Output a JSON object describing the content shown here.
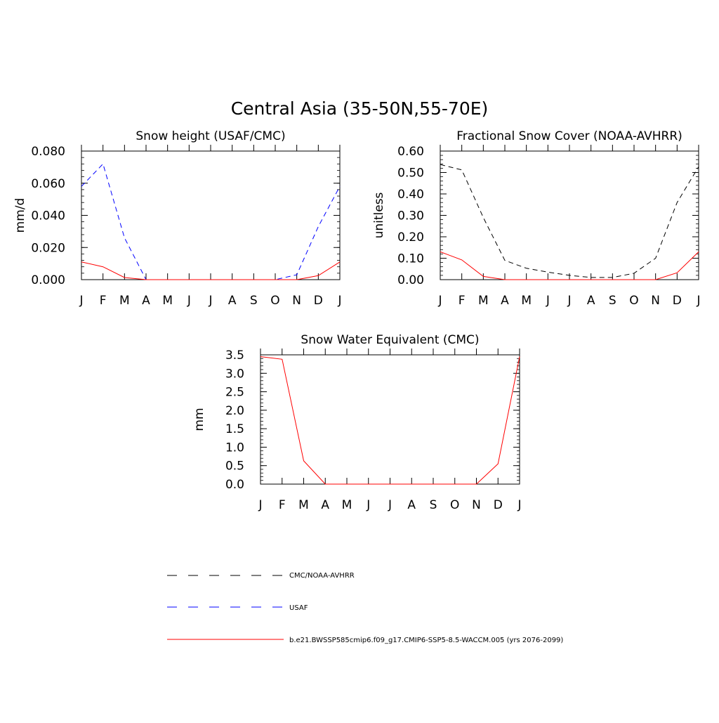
{
  "figure_title": "Central Asia (35-50N,55-70E)",
  "legend": [
    {
      "label": "CMC/NOAA-AVHRR",
      "color": "#000000",
      "dash": "dash"
    },
    {
      "label": "USAF",
      "color": "#0000ff",
      "dash": "dash"
    },
    {
      "label": "b.e21.BWSSP585cmip6.f09_g17.CMIP6-SSP5-8.5-WACCM.005 (yrs 2076-2099)",
      "color": "#ff0000",
      "dash": "solid"
    }
  ],
  "chart_data": [
    {
      "type": "line",
      "title": "Snow height (USAF/CMC)",
      "xlabel": "",
      "ylabel": "mm/d",
      "categories": [
        "J",
        "F",
        "M",
        "A",
        "M",
        "J",
        "J",
        "A",
        "S",
        "O",
        "N",
        "D",
        "J"
      ],
      "ylim": [
        0,
        0.08
      ],
      "yticks": [
        "0.000",
        "0.020",
        "0.040",
        "0.060",
        "0.080"
      ],
      "ytick_values": [
        0,
        0.02,
        0.04,
        0.06,
        0.08
      ],
      "series": [
        {
          "name": "USAF",
          "color": "#0000ff",
          "dash": "dash",
          "values": [
            0.058,
            0.072,
            0.026,
            0.0,
            0.0,
            0.0,
            0.0,
            0.0,
            0.0,
            0.0,
            0.003,
            0.033,
            0.058
          ]
        },
        {
          "name": "b.e21.BWSSP585cmip6.f09_g17.CMIP6-SSP5-8.5-WACCM.005 (yrs 2076-2099)",
          "color": "#ff0000",
          "dash": "solid",
          "values": [
            0.011,
            0.008,
            0.0013,
            0.0,
            0.0,
            0.0,
            0.0,
            0.0,
            0.0,
            0.0,
            0.0,
            0.0025,
            0.011
          ]
        }
      ]
    },
    {
      "type": "line",
      "title": "Fractional Snow Cover (NOAA-AVHRR)",
      "xlabel": "",
      "ylabel": "unitless",
      "categories": [
        "J",
        "F",
        "M",
        "A",
        "M",
        "J",
        "J",
        "A",
        "S",
        "O",
        "N",
        "D",
        "J"
      ],
      "ylim": [
        0,
        0.6
      ],
      "yticks": [
        "0.00",
        "0.10",
        "0.20",
        "0.30",
        "0.40",
        "0.50",
        "0.60"
      ],
      "ytick_values": [
        0,
        0.1,
        0.2,
        0.3,
        0.4,
        0.5,
        0.6
      ],
      "series": [
        {
          "name": "CMC/NOAA-AVHRR",
          "color": "#000000",
          "dash": "dash",
          "values": [
            0.537,
            0.512,
            0.29,
            0.09,
            0.053,
            0.035,
            0.02,
            0.01,
            0.01,
            0.03,
            0.1,
            0.36,
            0.527
          ]
        },
        {
          "name": "b.e21.BWSSP585cmip6.f09_g17.CMIP6-SSP5-8.5-WACCM.005 (yrs 2076-2099)",
          "color": "#ff0000",
          "dash": "solid",
          "values": [
            0.13,
            0.092,
            0.015,
            0.0,
            0.0,
            0.0,
            0.0,
            0.0,
            0.0,
            0.0,
            0.0,
            0.032,
            0.13
          ]
        }
      ]
    },
    {
      "type": "line",
      "title": "Snow Water Equivalent (CMC)",
      "xlabel": "",
      "ylabel": "mm",
      "categories": [
        "J",
        "F",
        "M",
        "A",
        "M",
        "J",
        "J",
        "A",
        "S",
        "O",
        "N",
        "D",
        "J"
      ],
      "ylim": [
        0,
        3.5
      ],
      "yticks": [
        "0.0",
        "0.5",
        "1.0",
        "1.5",
        "2.0",
        "2.5",
        "3.0",
        "3.5"
      ],
      "ytick_values": [
        0,
        0.5,
        1.0,
        1.5,
        2.0,
        2.5,
        3.0,
        3.5
      ],
      "series": [
        {
          "name": "CMC/NOAA-AVHRR",
          "color": "#000000",
          "dash": "dash",
          "values": [
            0,
            0,
            0,
            0,
            0,
            0,
            0,
            0,
            0,
            0,
            0,
            0,
            0
          ]
        },
        {
          "name": "b.e21.BWSSP585cmip6.f09_g17.CMIP6-SSP5-8.5-WACCM.005 (yrs 2076-2099)",
          "color": "#ff0000",
          "dash": "solid",
          "values": [
            3.45,
            3.38,
            0.63,
            0.0,
            0.0,
            0.0,
            0.0,
            0.0,
            0.0,
            0.0,
            0.0,
            0.55,
            3.45
          ]
        }
      ]
    }
  ]
}
